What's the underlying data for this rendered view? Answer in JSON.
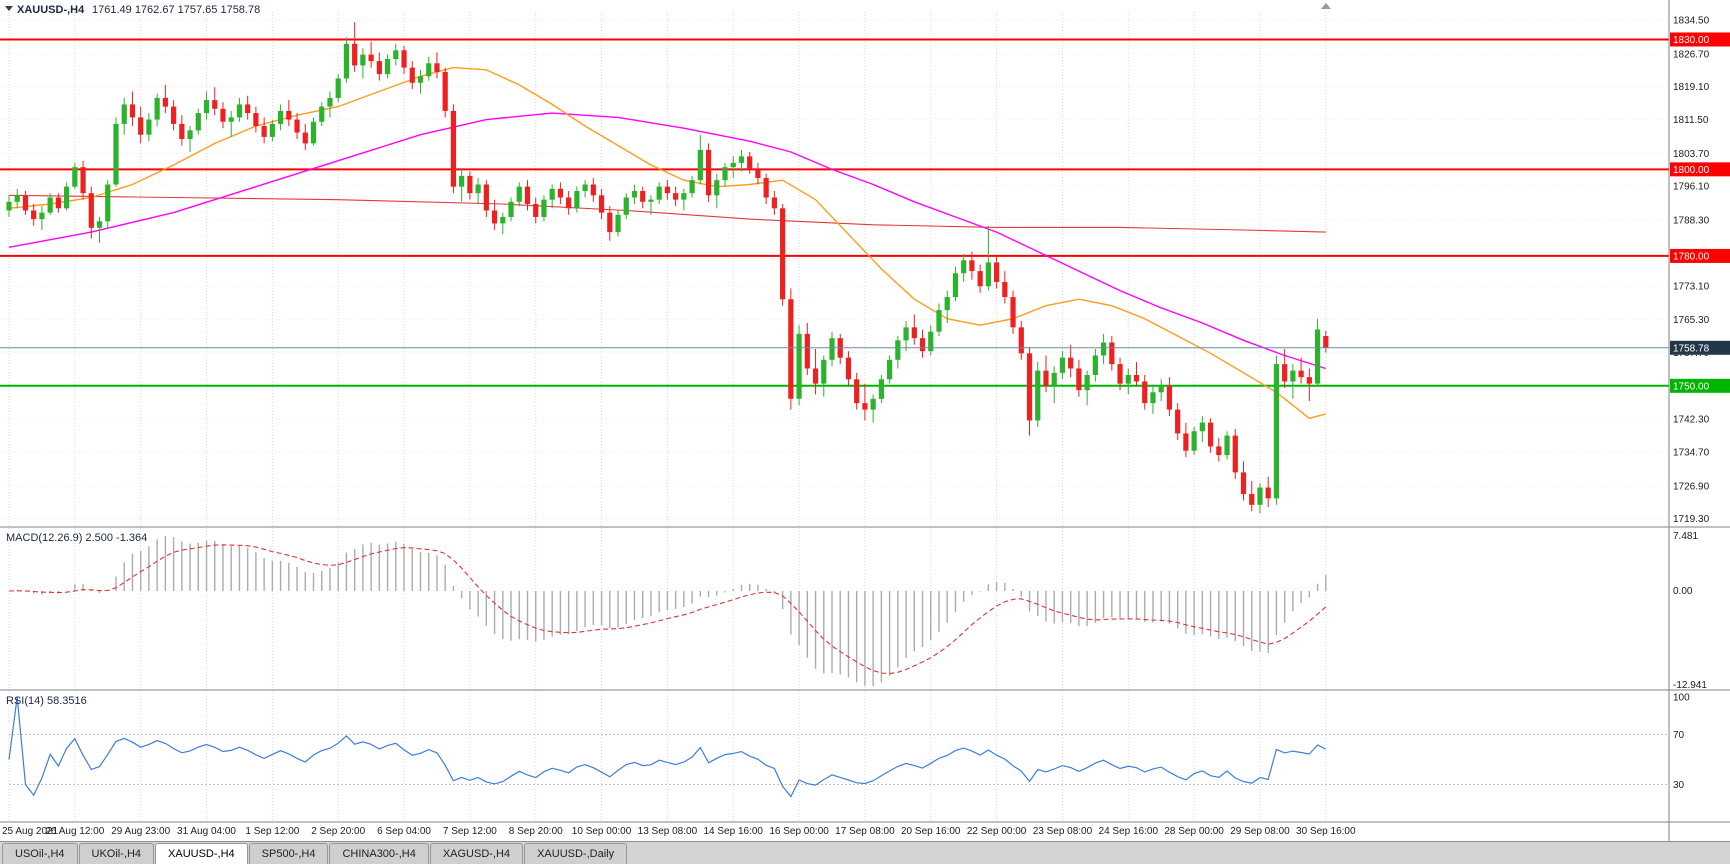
{
  "header": {
    "symbol_period": "XAUUSD-,H4",
    "ohlc": "1761.49 1762.67 1757.65 1758.78"
  },
  "colors": {
    "bull": "#2bb32b",
    "bear": "#ef2020",
    "hline_red": "#ff0000",
    "hline_green": "#00b400",
    "current_line": "#6a8ba6",
    "current_badge": "#24374a",
    "macd_bar": "#ababab",
    "macd_signal": "#e23333",
    "rsi_line": "#3d7edb",
    "grid": "#d9d9d9",
    "axis_text": "#1c1c1c"
  },
  "macd": {
    "label": "MACD(12.26.9) 2.500 -1.364",
    "fast": 12,
    "slow": 26,
    "signal": 9,
    "axis": {
      "max": 7.481,
      "zero": 0.0,
      "min": -12.941,
      "max_label": "7.481",
      "zero_label": "0.00",
      "min_label": "-12.941"
    }
  },
  "rsi": {
    "label": "RSI(14) 58.3516",
    "period": 14,
    "axis_labels": [
      {
        "value": 100,
        "label": "100"
      },
      {
        "value": 70,
        "label": "70"
      },
      {
        "value": 30,
        "label": "30"
      }
    ],
    "levels": [
      70,
      30
    ]
  },
  "price_axis_labels": [
    "1834.50",
    "1826.70",
    "1819.10",
    "1811.50",
    "1803.70",
    "1796.10",
    "1788.30",
    "1773.10",
    "1765.30",
    "1757.70",
    "1742.30",
    "1734.70",
    "1726.90",
    "1719.30"
  ],
  "hlines": [
    {
      "price": 1830.0,
      "label": "1830.00",
      "type": "resistance"
    },
    {
      "price": 1800.0,
      "label": "1800.00",
      "type": "resistance"
    },
    {
      "price": 1780.0,
      "label": "1780.00",
      "type": "resistance"
    },
    {
      "price": 1750.0,
      "label": "1750.00",
      "type": "support"
    }
  ],
  "current_price": {
    "value": 1758.78,
    "label": "1758.78"
  },
  "x_labels": [
    "25 Aug 2021",
    "26 Aug 12:00",
    "29 Aug 23:00",
    "31 Aug 04:00",
    "1 Sep 12:00",
    "2 Sep 20:00",
    "6 Sep 04:00",
    "7 Sep 12:00",
    "8 Sep 20:00",
    "10 Sep 00:00",
    "13 Sep 08:00",
    "14 Sep 16:00",
    "16 Sep 00:00",
    "17 Sep 08:00",
    "20 Sep 16:00",
    "22 Sep 00:00",
    "23 Sep 08:00",
    "24 Sep 16:00",
    "28 Sep 00:00",
    "29 Sep 08:00",
    "30 Sep 16:00"
  ],
  "tabs": [
    {
      "label": "USOil-,H4",
      "active": false
    },
    {
      "label": "UKOil-,H4",
      "active": false
    },
    {
      "label": "XAUUSD-,H4",
      "active": true
    },
    {
      "label": "SP500-,H4",
      "active": false
    },
    {
      "label": "CHINA300-,H4",
      "active": false
    },
    {
      "label": "XAGUSD-,H4",
      "active": false
    },
    {
      "label": "XAUUSD-,Daily",
      "active": false
    }
  ],
  "chart_data": {
    "type": "candlestick",
    "symbol": "XAUUSD-",
    "timeframe": "H4",
    "ylim": [
      1719.3,
      1834.5
    ],
    "ma_lines": [
      {
        "name": "ma-slow-red",
        "color": "#e23a3a",
        "width": 1.1,
        "points": [
          [
            0,
            1794
          ],
          [
            20,
            1793.5
          ],
          [
            40,
            1793
          ],
          [
            60,
            1792
          ],
          [
            75,
            1790.5
          ],
          [
            90,
            1788.5
          ],
          [
            105,
            1787.2
          ],
          [
            120,
            1786.6
          ],
          [
            135,
            1786.6
          ],
          [
            150,
            1786
          ],
          [
            160,
            1785.5
          ]
        ]
      },
      {
        "name": "ma-medium-magenta",
        "color": "#ff00ff",
        "width": 1.4,
        "points": [
          [
            0,
            1782
          ],
          [
            10,
            1785.5
          ],
          [
            20,
            1790
          ],
          [
            30,
            1796
          ],
          [
            40,
            1802
          ],
          [
            50,
            1808
          ],
          [
            58,
            1811.5
          ],
          [
            66,
            1813
          ],
          [
            74,
            1812
          ],
          [
            82,
            1809.5
          ],
          [
            90,
            1806.5
          ],
          [
            95,
            1804
          ],
          [
            100,
            1800
          ],
          [
            105,
            1796.5
          ],
          [
            110,
            1792.5
          ],
          [
            115,
            1789
          ],
          [
            120,
            1785.5
          ],
          [
            125,
            1781
          ],
          [
            130,
            1776.5
          ],
          [
            135,
            1772
          ],
          [
            140,
            1768
          ],
          [
            145,
            1764.5
          ],
          [
            150,
            1760.5
          ],
          [
            155,
            1757
          ],
          [
            160,
            1754
          ]
        ]
      },
      {
        "name": "ma-fast-orange",
        "color": "#ff9c1e",
        "width": 1.4,
        "points": [
          [
            0,
            1791
          ],
          [
            5,
            1792
          ],
          [
            10,
            1793.5
          ],
          [
            15,
            1796.5
          ],
          [
            20,
            1801
          ],
          [
            25,
            1806
          ],
          [
            30,
            1810
          ],
          [
            35,
            1812.5
          ],
          [
            40,
            1814.5
          ],
          [
            45,
            1818
          ],
          [
            50,
            1821.5
          ],
          [
            54,
            1823.5
          ],
          [
            58,
            1823
          ],
          [
            62,
            1819.5
          ],
          [
            66,
            1815
          ],
          [
            70,
            1810
          ],
          [
            74,
            1805.5
          ],
          [
            78,
            1801
          ],
          [
            82,
            1797.5
          ],
          [
            86,
            1796
          ],
          [
            90,
            1796.5
          ],
          [
            94,
            1797.5
          ],
          [
            98,
            1793
          ],
          [
            102,
            1785
          ],
          [
            106,
            1777
          ],
          [
            110,
            1770
          ],
          [
            114,
            1765.5
          ],
          [
            118,
            1764
          ],
          [
            122,
            1765.5
          ],
          [
            126,
            1768.5
          ],
          [
            130,
            1770
          ],
          [
            134,
            1768.5
          ],
          [
            138,
            1765.5
          ],
          [
            142,
            1761.5
          ],
          [
            146,
            1757.5
          ],
          [
            150,
            1753
          ],
          [
            154,
            1748.5
          ],
          [
            156,
            1745.5
          ],
          [
            158,
            1742.5
          ],
          [
            160,
            1743.5
          ]
        ]
      }
    ],
    "candles": [
      [
        1790.5,
        1794,
        1789,
        1792.5
      ],
      [
        1792.5,
        1795.5,
        1791,
        1794
      ],
      [
        1794,
        1795,
        1789.5,
        1790.5
      ],
      [
        1790.5,
        1792,
        1787,
        1788.5
      ],
      [
        1788.5,
        1791.5,
        1786,
        1790
      ],
      [
        1790,
        1794.5,
        1789.5,
        1793.5
      ],
      [
        1793.5,
        1794.5,
        1790,
        1791
      ],
      [
        1791,
        1797,
        1790.5,
        1796
      ],
      [
        1796,
        1801.5,
        1795.5,
        1800.5
      ],
      [
        1800.5,
        1802,
        1793,
        1794.5
      ],
      [
        1794.5,
        1796,
        1784,
        1786.5
      ],
      [
        1786.5,
        1789,
        1783,
        1788
      ],
      [
        1788,
        1797.5,
        1786.5,
        1796.5
      ],
      [
        1796.5,
        1812,
        1796,
        1810.5
      ],
      [
        1810.5,
        1816.5,
        1808,
        1815
      ],
      [
        1815,
        1818,
        1810,
        1812
      ],
      [
        1812,
        1814.5,
        1806,
        1808
      ],
      [
        1808,
        1813,
        1806.5,
        1811.5
      ],
      [
        1811.5,
        1817.5,
        1810,
        1816.5
      ],
      [
        1816.5,
        1819.5,
        1813,
        1814.5
      ],
      [
        1814.5,
        1816,
        1809,
        1810.5
      ],
      [
        1810.5,
        1812.5,
        1805.5,
        1807
      ],
      [
        1807,
        1810,
        1804,
        1809
      ],
      [
        1809,
        1814,
        1808,
        1813
      ],
      [
        1813,
        1818,
        1811.5,
        1816
      ],
      [
        1816,
        1819,
        1812.5,
        1814
      ],
      [
        1814,
        1815.5,
        1809.5,
        1811
      ],
      [
        1811,
        1813.5,
        1807.5,
        1812
      ],
      [
        1812,
        1816.5,
        1811,
        1815
      ],
      [
        1815,
        1817,
        1811.5,
        1813
      ],
      [
        1813,
        1814.5,
        1808.5,
        1810
      ],
      [
        1810,
        1812,
        1806,
        1807.5
      ],
      [
        1807.5,
        1811.5,
        1806.5,
        1810.5
      ],
      [
        1810.5,
        1815,
        1809,
        1813.5
      ],
      [
        1813.5,
        1816,
        1810,
        1811.5
      ],
      [
        1811.5,
        1813,
        1807,
        1808.5
      ],
      [
        1808.5,
        1810.5,
        1804.5,
        1806
      ],
      [
        1806,
        1812,
        1805.5,
        1811
      ],
      [
        1811,
        1815.5,
        1810,
        1814.5
      ],
      [
        1814.5,
        1818,
        1812,
        1816.5
      ],
      [
        1816.5,
        1822,
        1815.5,
        1821
      ],
      [
        1821,
        1830.5,
        1820,
        1829
      ],
      [
        1829,
        1834,
        1822.5,
        1824
      ],
      [
        1824,
        1828,
        1821,
        1826.5
      ],
      [
        1826.5,
        1829.5,
        1823.5,
        1825
      ],
      [
        1825,
        1827,
        1820.5,
        1822
      ],
      [
        1822,
        1826.5,
        1821,
        1825.5
      ],
      [
        1825.5,
        1829,
        1824,
        1827.5
      ],
      [
        1827.5,
        1828.5,
        1822,
        1823.5
      ],
      [
        1823.5,
        1825,
        1818.5,
        1820
      ],
      [
        1820,
        1823,
        1817.5,
        1821.5
      ],
      [
        1821.5,
        1826,
        1820.5,
        1824.5
      ],
      [
        1824.5,
        1827,
        1821,
        1822.5
      ],
      [
        1822.5,
        1823.5,
        1812,
        1813.5
      ],
      [
        1813.5,
        1815,
        1794.5,
        1796
      ],
      [
        1796,
        1800,
        1792.5,
        1798.5
      ],
      [
        1798.5,
        1799.5,
        1793,
        1794.5
      ],
      [
        1794.5,
        1798,
        1792,
        1796.5
      ],
      [
        1796.5,
        1797.5,
        1789,
        1790.5
      ],
      [
        1790.5,
        1793,
        1786,
        1787.5
      ],
      [
        1787.5,
        1790,
        1785,
        1789
      ],
      [
        1789,
        1793.5,
        1788,
        1792.5
      ],
      [
        1792.5,
        1797,
        1791.5,
        1796
      ],
      [
        1796,
        1797.5,
        1790.5,
        1792
      ],
      [
        1792,
        1793.5,
        1787.5,
        1789
      ],
      [
        1789,
        1794,
        1788,
        1793
      ],
      [
        1793,
        1796.5,
        1791,
        1795.5
      ],
      [
        1795.5,
        1797,
        1792,
        1793.5
      ],
      [
        1793.5,
        1795,
        1789.5,
        1791
      ],
      [
        1791,
        1796,
        1790,
        1795
      ],
      [
        1795,
        1797.5,
        1793.5,
        1796.5
      ],
      [
        1796.5,
        1798,
        1792.5,
        1794
      ],
      [
        1794,
        1795.5,
        1788.5,
        1790
      ],
      [
        1790,
        1791.5,
        1783.5,
        1785.5
      ],
      [
        1785.5,
        1790.5,
        1784.5,
        1789.5
      ],
      [
        1789.5,
        1794.5,
        1788.5,
        1793.5
      ],
      [
        1793.5,
        1796.5,
        1792,
        1795
      ],
      [
        1795,
        1796,
        1791,
        1792.5
      ],
      [
        1792.5,
        1794,
        1789.5,
        1793
      ],
      [
        1793,
        1797,
        1792,
        1796
      ],
      [
        1796,
        1797.5,
        1793,
        1794.5
      ],
      [
        1794.5,
        1796,
        1791.5,
        1793
      ],
      [
        1793,
        1795.5,
        1790.5,
        1794.5
      ],
      [
        1794.5,
        1798.5,
        1793.5,
        1797.5
      ],
      [
        1797.5,
        1808,
        1796.5,
        1804.5
      ],
      [
        1804.5,
        1806,
        1792.5,
        1794
      ],
      [
        1794,
        1799,
        1791,
        1797.5
      ],
      [
        1797.5,
        1801.5,
        1796,
        1800.5
      ],
      [
        1800.5,
        1803,
        1798,
        1801.5
      ],
      [
        1801.5,
        1804.5,
        1799.5,
        1803
      ],
      [
        1803,
        1804,
        1799,
        1800
      ],
      [
        1800,
        1801.5,
        1796.5,
        1798
      ],
      [
        1798,
        1799,
        1792,
        1793.5
      ],
      [
        1793.5,
        1795,
        1789.5,
        1791
      ],
      [
        1791,
        1792,
        1768.5,
        1770
      ],
      [
        1770,
        1772.5,
        1744.5,
        1747
      ],
      [
        1747,
        1764,
        1745.5,
        1762
      ],
      [
        1762,
        1764.5,
        1752.5,
        1754
      ],
      [
        1754,
        1758.5,
        1748,
        1750.5
      ],
      [
        1750.5,
        1757,
        1747.5,
        1756
      ],
      [
        1756,
        1762.5,
        1754.5,
        1761
      ],
      [
        1761,
        1762,
        1755,
        1756.5
      ],
      [
        1756.5,
        1758,
        1750,
        1751.5
      ],
      [
        1751.5,
        1753,
        1744.5,
        1746
      ],
      [
        1746,
        1750.5,
        1742,
        1744.5
      ],
      [
        1744.5,
        1748,
        1741.5,
        1747
      ],
      [
        1747,
        1752.5,
        1746,
        1751.5
      ],
      [
        1751.5,
        1757,
        1750.5,
        1756
      ],
      [
        1756,
        1761.5,
        1754,
        1760.5
      ],
      [
        1760.5,
        1765,
        1758,
        1763.5
      ],
      [
        1763.5,
        1766.5,
        1759.5,
        1761
      ],
      [
        1761,
        1763,
        1756.5,
        1758
      ],
      [
        1758,
        1764,
        1757,
        1762.5
      ],
      [
        1762.5,
        1769,
        1761.5,
        1767.5
      ],
      [
        1767.5,
        1772,
        1764.5,
        1770.5
      ],
      [
        1770.5,
        1777.5,
        1769.5,
        1776
      ],
      [
        1776,
        1780.5,
        1774,
        1779
      ],
      [
        1779,
        1781,
        1774.5,
        1776.5
      ],
      [
        1776.5,
        1778,
        1771.5,
        1773
      ],
      [
        1773,
        1787,
        1772,
        1778.5
      ],
      [
        1778.5,
        1780,
        1772.5,
        1774
      ],
      [
        1774,
        1776.5,
        1769,
        1770.5
      ],
      [
        1770.5,
        1772,
        1762,
        1763.5
      ],
      [
        1763.5,
        1765,
        1756,
        1757.5
      ],
      [
        1757.5,
        1759,
        1738.5,
        1742
      ],
      [
        1742,
        1755.5,
        1740.5,
        1753.5
      ],
      [
        1753.5,
        1757,
        1748.5,
        1750
      ],
      [
        1750,
        1754.5,
        1746,
        1753
      ],
      [
        1753,
        1758,
        1751.5,
        1756.5
      ],
      [
        1756.5,
        1759.5,
        1752,
        1754
      ],
      [
        1754,
        1756,
        1747.5,
        1749
      ],
      [
        1749,
        1753.5,
        1745.5,
        1752.5
      ],
      [
        1752.5,
        1758.5,
        1751,
        1757
      ],
      [
        1757,
        1762,
        1755,
        1760
      ],
      [
        1760,
        1761.5,
        1753.5,
        1755
      ],
      [
        1755,
        1756.5,
        1749,
        1750.5
      ],
      [
        1750.5,
        1754,
        1748,
        1752.5
      ],
      [
        1752.5,
        1755.5,
        1750,
        1751
      ],
      [
        1751,
        1752.5,
        1744.5,
        1746
      ],
      [
        1746,
        1750,
        1743.5,
        1748.5
      ],
      [
        1748.5,
        1751.5,
        1746.5,
        1750
      ],
      [
        1750,
        1752,
        1743,
        1744.5
      ],
      [
        1744.5,
        1746,
        1737.5,
        1739
      ],
      [
        1739,
        1741.5,
        1733.5,
        1735
      ],
      [
        1735,
        1740.5,
        1734,
        1739.5
      ],
      [
        1739.5,
        1743,
        1737,
        1741.5
      ],
      [
        1741.5,
        1742.5,
        1734.5,
        1736
      ],
      [
        1736,
        1738,
        1732.5,
        1734
      ],
      [
        1734,
        1739.5,
        1733,
        1738.5
      ],
      [
        1738.5,
        1740,
        1728.5,
        1730
      ],
      [
        1730,
        1732.5,
        1723.5,
        1725
      ],
      [
        1725,
        1728,
        1721,
        1722.5
      ],
      [
        1722.5,
        1727.5,
        1720.5,
        1726.5
      ],
      [
        1726.5,
        1729,
        1722,
        1724
      ],
      [
        1724,
        1757,
        1722.5,
        1755
      ],
      [
        1755,
        1758.5,
        1749.5,
        1751
      ],
      [
        1751,
        1755,
        1747,
        1753.5
      ],
      [
        1753.5,
        1756.5,
        1750.5,
        1752
      ],
      [
        1752,
        1754,
        1746.5,
        1750.5
      ],
      [
        1750.5,
        1765.5,
        1750,
        1763
      ],
      [
        1761.49,
        1762.67,
        1757.65,
        1758.78
      ]
    ]
  }
}
